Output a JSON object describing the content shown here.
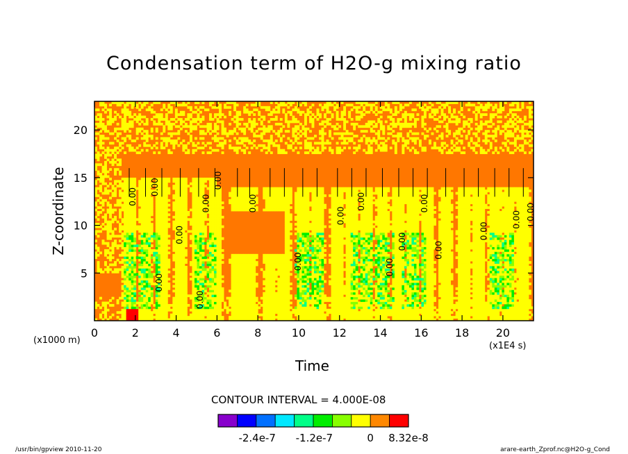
{
  "chart_data": {
    "type": "heatmap",
    "title": "Condensation term of H2O-g mixing ratio",
    "xlabel": "Time",
    "ylabel": "Z-coordinate",
    "x_unit": "(x1E4 s)",
    "y_unit": "(x1000 m)",
    "xlim": [
      0,
      21.5
    ],
    "ylim": [
      0,
      23
    ],
    "x_ticks": [
      "0",
      "2",
      "4",
      "6",
      "8",
      "10",
      "12",
      "14",
      "16",
      "18",
      "20"
    ],
    "y_ticks": [
      "5",
      "10",
      "15",
      "20"
    ],
    "contour_interval_text": "CONTOUR INTERVAL = 4.000E-08",
    "contour_labels": [
      {
        "text": "0.00",
        "x": 2.0,
        "y": 13.0
      },
      {
        "text": "0.00",
        "x": 3.1,
        "y": 14.0
      },
      {
        "text": "0.00",
        "x": 3.3,
        "y": 4.0
      },
      {
        "text": "0.00",
        "x": 4.3,
        "y": 9.0
      },
      {
        "text": "0.00",
        "x": 5.3,
        "y": 2.2
      },
      {
        "text": "0.00",
        "x": 5.6,
        "y": 12.3
      },
      {
        "text": "0.00",
        "x": 6.2,
        "y": 14.7
      },
      {
        "text": "0.00",
        "x": 7.9,
        "y": 12.3
      },
      {
        "text": "0.00",
        "x": 10.1,
        "y": 6.2
      },
      {
        "text": "0.00",
        "x": 12.2,
        "y": 11.0
      },
      {
        "text": "0.00",
        "x": 13.2,
        "y": 12.5
      },
      {
        "text": "0.00",
        "x": 14.6,
        "y": 5.6
      },
      {
        "text": "0.00",
        "x": 15.2,
        "y": 8.3
      },
      {
        "text": "0.00",
        "x": 16.3,
        "y": 12.3
      },
      {
        "text": "0.00",
        "x": 17.0,
        "y": 7.4
      },
      {
        "text": "0.00",
        "x": 19.2,
        "y": 9.4
      },
      {
        "text": "0.00",
        "x": 20.8,
        "y": 10.6
      },
      {
        "text": "0.00",
        "x": 21.5,
        "y": 11.4
      }
    ],
    "colorbar": {
      "colors": [
        "#8800cc",
        "#0000ff",
        "#0070ff",
        "#00e8ff",
        "#00ff88",
        "#00ee00",
        "#88ff00",
        "#ffff00",
        "#ff8800",
        "#ff0000"
      ],
      "labels": [
        "-2.4e-7",
        "-1.2e-7",
        "0",
        "8.32e-8"
      ]
    },
    "colors": {
      "low_pos": "#ffff00",
      "background": "#ff7700",
      "high": "#ff0000",
      "neg_small": "#88ff00",
      "neg_mid": "#00ee00",
      "neg_large": "#00ff88"
    }
  },
  "footer": {
    "left": "/usr/bin/gpview  2010-11-20",
    "right": "arare-earth_Zprof.nc@H2O-g_Cond"
  }
}
